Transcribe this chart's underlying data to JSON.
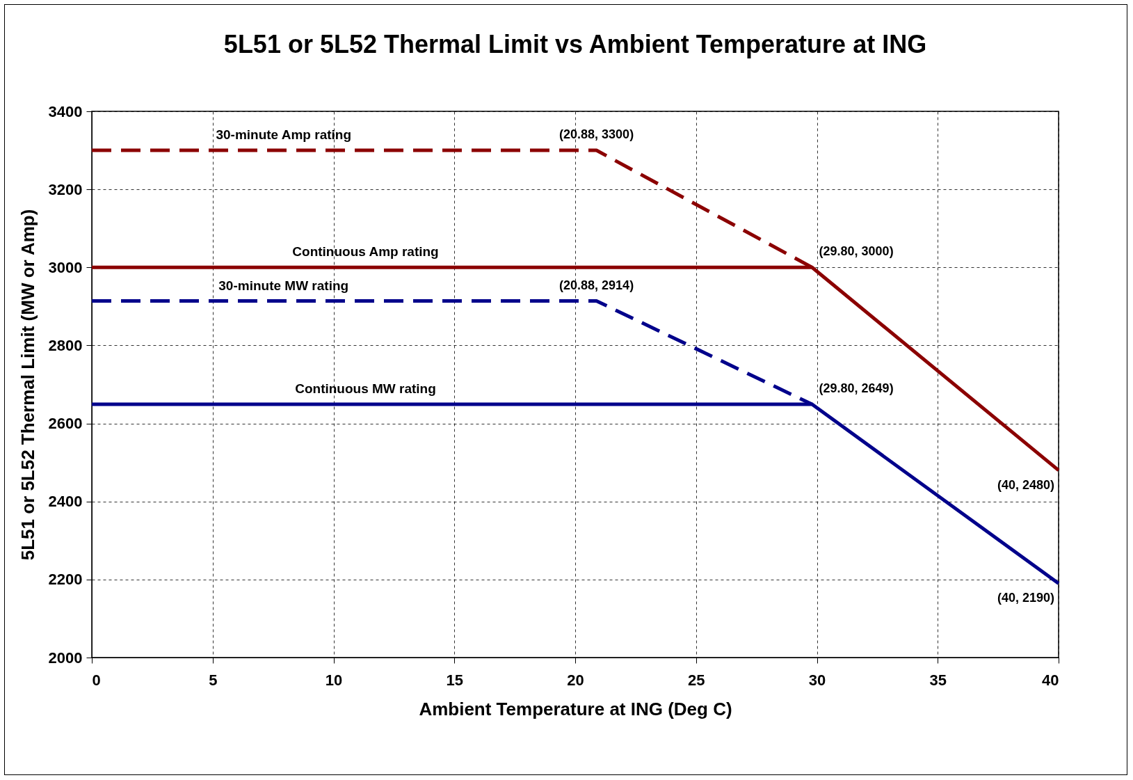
{
  "chart_data": {
    "type": "line",
    "title": "5L51 or 5L52 Thermal Limit vs Ambient Temperature at ING",
    "xlabel": "Ambient Temperature at ING (Deg C)",
    "ylabel": "5L51 or 5L52 Thermal Limit (MW or Amp)",
    "xlim": [
      0,
      40
    ],
    "xticks": [
      0,
      5,
      10,
      15,
      20,
      25,
      30,
      35,
      40
    ],
    "ylim": [
      2000,
      3400
    ],
    "yticks": [
      2000,
      2200,
      2400,
      2600,
      2800,
      3000,
      3200,
      3400
    ],
    "grid": true,
    "marker": "none",
    "series": [
      {
        "name": "30-minute Amp rating",
        "color": "#8b0000",
        "line_style": "dashed",
        "x": [
          0,
          20.88,
          29.8
        ],
        "values": [
          3300,
          3300,
          3000
        ]
      },
      {
        "name": "Continuous Amp rating",
        "color": "#8b0000",
        "line_style": "solid",
        "x": [
          0,
          29.8,
          40
        ],
        "values": [
          3000,
          3000,
          2480
        ]
      },
      {
        "name": "30-minute MW rating",
        "color": "#00008b",
        "line_style": "dashed",
        "x": [
          0,
          20.88,
          29.8
        ],
        "values": [
          2914,
          2914,
          2649
        ]
      },
      {
        "name": "Continuous MW rating",
        "color": "#00008b",
        "line_style": "solid",
        "x": [
          0,
          29.8,
          40
        ],
        "values": [
          2649,
          2649,
          2190
        ]
      }
    ],
    "annotations": [
      {
        "text": "(20.88, 3300)",
        "x": 20.88,
        "y": 3300
      },
      {
        "text": "(29.80, 3000)",
        "x": 29.8,
        "y": 3000
      },
      {
        "text": "(20.88, 2914)",
        "x": 20.88,
        "y": 2914
      },
      {
        "text": "(29.80, 2649)",
        "x": 29.8,
        "y": 2649
      },
      {
        "text": "(40, 2480)",
        "x": 40,
        "y": 2480
      },
      {
        "text": "(40, 2190)",
        "x": 40,
        "y": 2190
      }
    ]
  }
}
